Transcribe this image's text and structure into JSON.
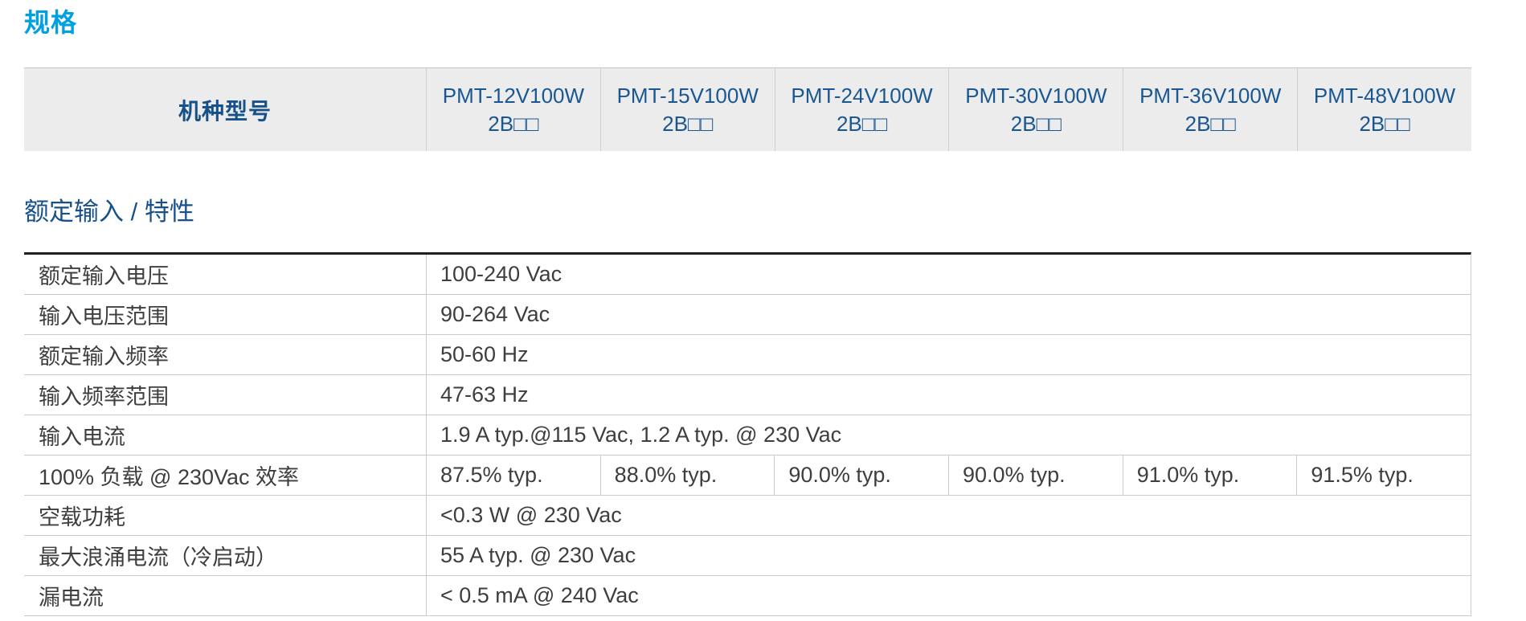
{
  "page": {
    "title": "规格",
    "section_title": "额定输入 / 特性"
  },
  "colors": {
    "accent_blue": "#00A0E1",
    "heading_blue": "#17518A",
    "header_bg": "#ECECEC",
    "text_gray": "#3E3E3E",
    "line_light": "#CBCBCB",
    "line_dark": "#202020"
  },
  "model_table": {
    "row_header": "机种型号",
    "models": [
      {
        "line1": "PMT-12V100W",
        "line2": "2B□□"
      },
      {
        "line1": "PMT-15V100W",
        "line2": "2B□□"
      },
      {
        "line1": "PMT-24V100W",
        "line2": "2B□□"
      },
      {
        "line1": "PMT-30V100W",
        "line2": "2B□□"
      },
      {
        "line1": "PMT-36V100W",
        "line2": "2B□□"
      },
      {
        "line1": "PMT-48V100W",
        "line2": "2B□□"
      }
    ]
  },
  "spec_table": {
    "rows": [
      {
        "label": "额定输入电压",
        "value": "100-240 Vac"
      },
      {
        "label": "输入电压范围",
        "value": "90-264 Vac"
      },
      {
        "label": "额定输入频率",
        "value": "50-60 Hz"
      },
      {
        "label": "输入频率范围",
        "value": "47-63 Hz"
      },
      {
        "label": "输入电流",
        "value": "1.9 A typ.@115 Vac, 1.2 A typ. @ 230 Vac"
      },
      {
        "label": "100% 负载 @ 230Vac 效率",
        "values": [
          "87.5% typ.",
          "88.0% typ.",
          "90.0% typ.",
          "90.0% typ.",
          "91.0% typ.",
          "91.5% typ."
        ]
      },
      {
        "label": "空载功耗",
        "value": "<0.3 W @ 230 Vac"
      },
      {
        "label": "最大浪涌电流（冷启动）",
        "value": "55 A typ. @ 230 Vac"
      },
      {
        "label": "漏电流",
        "value": "< 0.5 mA @ 240 Vac"
      }
    ]
  }
}
